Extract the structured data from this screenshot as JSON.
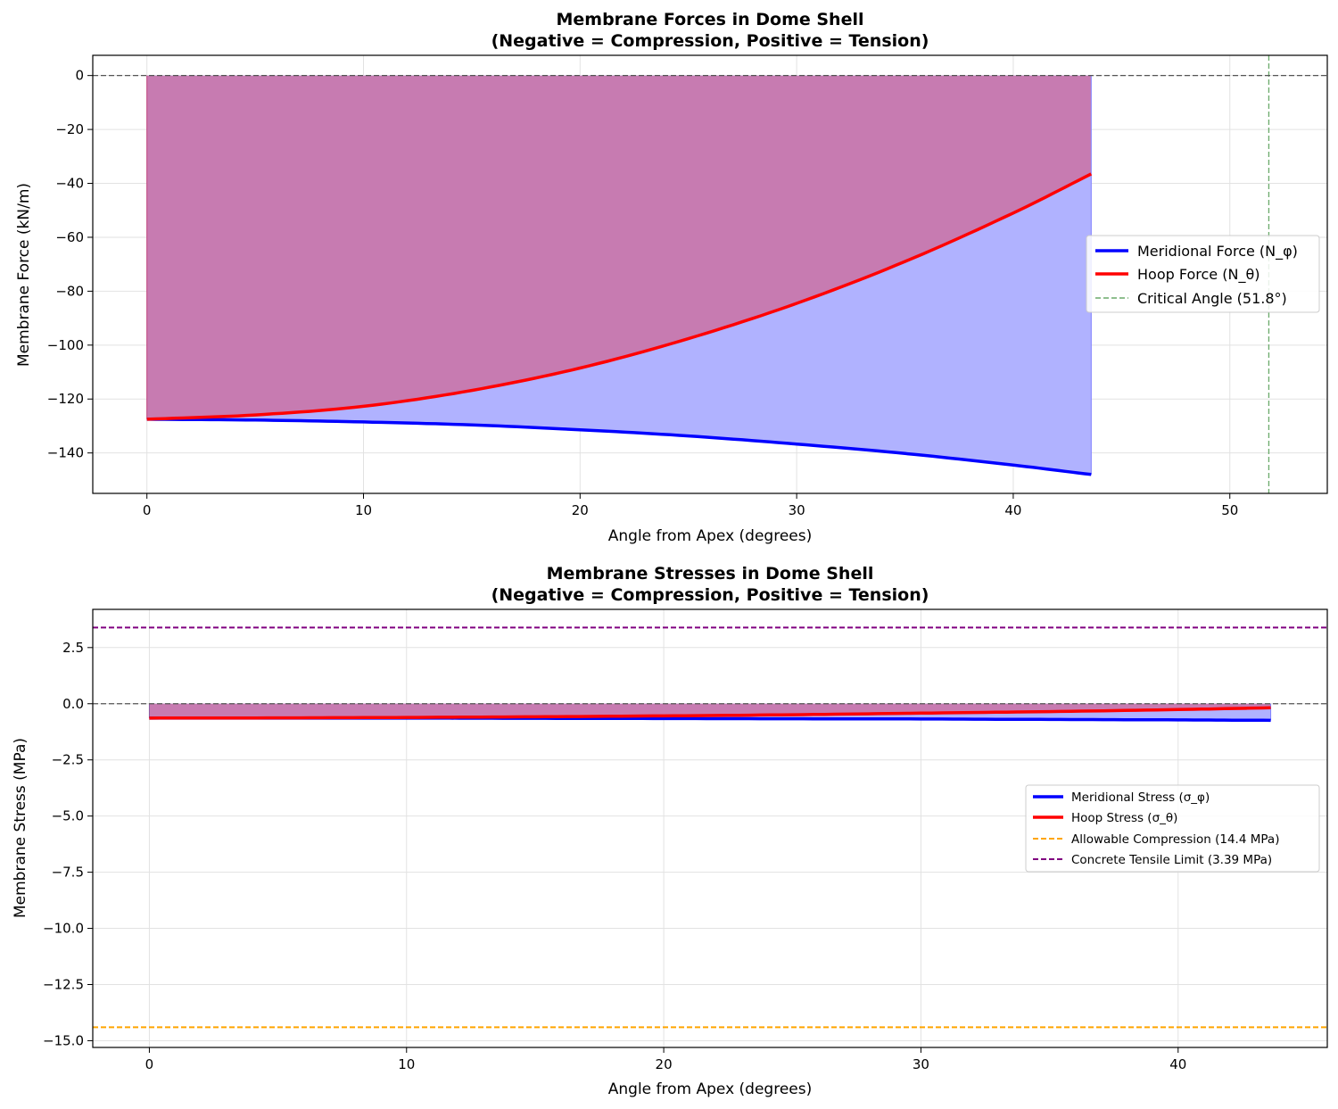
{
  "chart_data": [
    {
      "type": "area",
      "title": "Membrane Forces in Dome Shell",
      "subtitle": "(Negative = Compression, Positive = Tension)",
      "xlabel": "Angle from Apex (degrees)",
      "ylabel": "Membrane Force (kN/m)",
      "xlim": [
        -2.5,
        54.5
      ],
      "ylim": [
        -155,
        7.5
      ],
      "xticks": [
        "0",
        "10",
        "20",
        "30",
        "40",
        "50"
      ],
      "yticks": [
        "0",
        "−20",
        "−40",
        "−60",
        "−80",
        "−100",
        "−120",
        "−140"
      ],
      "grid": true,
      "legend_position": "center-right",
      "x": [
        0,
        5,
        10,
        15,
        20,
        25,
        30,
        35,
        40,
        43.6
      ],
      "series": [
        {
          "name": "Meridional Force (N_φ)",
          "color": "#0000ff",
          "fill": "#b0b2ff",
          "values": [
            -127.5,
            -127.8,
            -128.5,
            -129.6,
            -131.4,
            -133.7,
            -136.7,
            -140.2,
            -144.5,
            -148
          ]
        },
        {
          "name": "Hoop Force (N_θ)",
          "color": "#ff0000",
          "fill": "#c77bb1",
          "values": [
            -127.5,
            -125.9,
            -122.7,
            -116.8,
            -108.5,
            -97.6,
            -84.5,
            -69,
            -51,
            -36.5
          ]
        }
      ],
      "reference_lines": [
        {
          "name": "Critical Angle (51.8°)",
          "axis": "x",
          "value": 51.8,
          "color": "#6aaa6a",
          "style": "dashed"
        },
        {
          "name": "",
          "axis": "y",
          "value": 0,
          "color": "#555555",
          "style": "dashed"
        }
      ]
    },
    {
      "type": "area",
      "title": "Membrane Stresses in Dome Shell",
      "subtitle": "(Negative = Compression, Positive = Tension)",
      "xlabel": "Angle from Apex (degrees)",
      "ylabel": "Membrane Stress (MPa)",
      "xlim": [
        -2.2,
        45.8
      ],
      "ylim": [
        -15.3,
        4.2
      ],
      "xticks": [
        "0",
        "10",
        "20",
        "30",
        "40"
      ],
      "yticks": [
        "2.5",
        "0.0",
        "−2.5",
        "−5.0",
        "−7.5",
        "−10.0",
        "−12.5",
        "−15.0"
      ],
      "grid": true,
      "legend_position": "center-right",
      "x": [
        0,
        5,
        10,
        15,
        20,
        25,
        30,
        35,
        40,
        43.6
      ],
      "series": [
        {
          "name": "Meridional Stress (σ_φ)",
          "color": "#0000ff",
          "fill": "#b0b2ff",
          "values": [
            -0.64,
            -0.64,
            -0.64,
            -0.65,
            -0.66,
            -0.67,
            -0.68,
            -0.7,
            -0.72,
            -0.74
          ]
        },
        {
          "name": "Hoop Stress (σ_θ)",
          "color": "#ff0000",
          "fill": "#c77bb1",
          "values": [
            -0.64,
            -0.63,
            -0.61,
            -0.58,
            -0.54,
            -0.49,
            -0.42,
            -0.35,
            -0.26,
            -0.18
          ]
        }
      ],
      "reference_lines": [
        {
          "name": "Allowable Compression (14.4 MPa)",
          "axis": "y",
          "value": -14.4,
          "color": "#ffa500",
          "style": "dashed"
        },
        {
          "name": "Concrete Tensile Limit (3.39 MPa)",
          "axis": "y",
          "value": 3.39,
          "color": "#800080",
          "style": "dashed"
        },
        {
          "name": "",
          "axis": "y",
          "value": 0,
          "color": "#555555",
          "style": "dashed"
        }
      ]
    }
  ]
}
